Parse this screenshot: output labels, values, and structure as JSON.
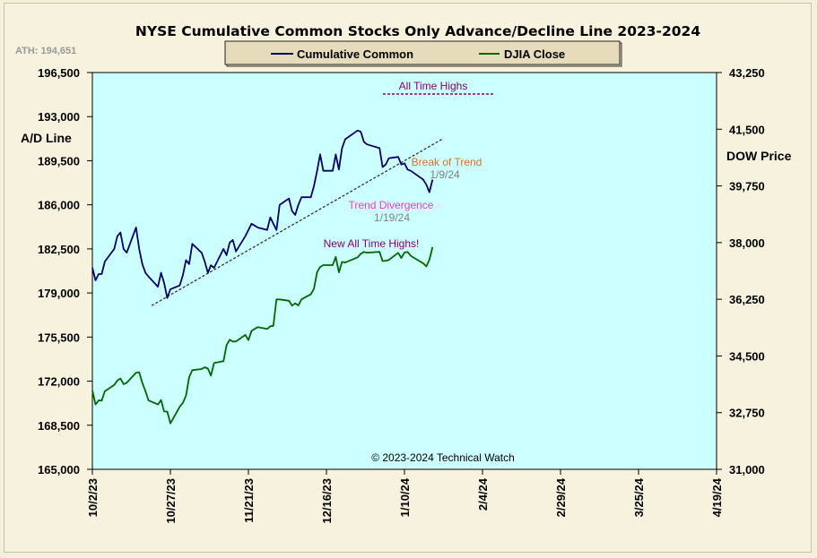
{
  "chart_data": {
    "type": "line",
    "title": "NYSE Cumulative  Common Stocks Only Advance/Decline Line 2023-2024",
    "ath_label": "ATH: 194,651",
    "ylabel_left": "A/D Line",
    "ylabel_right": "DOW Price",
    "copyright": "© 2023-2024  Technical Watch",
    "colors": {
      "plot_background": "#ccffff",
      "cumulative_common": "#000066",
      "djia_close": "#006600",
      "trendline": "#333333",
      "all_time_highs_text": "#800080",
      "break_of_trend_text": "#e07020",
      "date_text": "#808080",
      "trend_divergence_text": "#ff33cc"
    },
    "x_ticks": [
      "10/2/23",
      "10/27/23",
      "11/21/23",
      "12/16/23",
      "1/10/24",
      "2/4/24",
      "2/29/24",
      "3/25/24",
      "4/19/24"
    ],
    "xlim": [
      "2023-10-02",
      "2024-04-19"
    ],
    "left_axis": {
      "ylim": [
        165000,
        196500
      ],
      "ticks": [
        "165,000",
        "168,500",
        "172,000",
        "175,500",
        "179,000",
        "182,500",
        "186,000",
        "189,500",
        "193,000",
        "196,500"
      ]
    },
    "right_axis": {
      "ylim": [
        31000,
        43250
      ],
      "ticks": [
        "31,000",
        "32,750",
        "34,500",
        "36,250",
        "38,000",
        "39,750",
        "41,500",
        "43,250"
      ]
    },
    "series": [
      {
        "name": "Cumulative Common",
        "axis": "left",
        "x": [
          "2023-10-02",
          "2023-10-03",
          "2023-10-04",
          "2023-10-05",
          "2023-10-06",
          "2023-10-09",
          "2023-10-10",
          "2023-10-11",
          "2023-10-12",
          "2023-10-13",
          "2023-10-16",
          "2023-10-17",
          "2023-10-18",
          "2023-10-19",
          "2023-10-20",
          "2023-10-23",
          "2023-10-24",
          "2023-10-25",
          "2023-10-26",
          "2023-10-27",
          "2023-10-30",
          "2023-10-31",
          "2023-11-01",
          "2023-11-02",
          "2023-11-03",
          "2023-11-06",
          "2023-11-07",
          "2023-11-08",
          "2023-11-09",
          "2023-11-10",
          "2023-11-13",
          "2023-11-14",
          "2023-11-15",
          "2023-11-16",
          "2023-11-17",
          "2023-11-20",
          "2023-11-21",
          "2023-11-22",
          "2023-11-24",
          "2023-11-27",
          "2023-11-28",
          "2023-11-29",
          "2023-11-30",
          "2023-12-01",
          "2023-12-04",
          "2023-12-05",
          "2023-12-06",
          "2023-12-07",
          "2023-12-08",
          "2023-12-11",
          "2023-12-12",
          "2023-12-13",
          "2023-12-14",
          "2023-12-15",
          "2023-12-18",
          "2023-12-19",
          "2023-12-20",
          "2023-12-21",
          "2023-12-22",
          "2023-12-26",
          "2023-12-27",
          "2023-12-28",
          "2023-12-29",
          "2024-01-02",
          "2024-01-03",
          "2024-01-04",
          "2024-01-05",
          "2024-01-08",
          "2024-01-09",
          "2024-01-10",
          "2024-01-11",
          "2024-01-12",
          "2024-01-16",
          "2024-01-17",
          "2024-01-18",
          "2024-01-19"
        ],
        "values": [
          181000,
          180000,
          180500,
          180500,
          181500,
          182500,
          183500,
          183800,
          182500,
          182200,
          184200,
          182500,
          181300,
          180600,
          180300,
          179500,
          180600,
          179800,
          178600,
          179300,
          179600,
          180400,
          181600,
          181300,
          182900,
          182200,
          181500,
          180600,
          181200,
          181000,
          182500,
          182000,
          183000,
          183200,
          182300,
          183500,
          184000,
          184500,
          184200,
          184000,
          185000,
          184500,
          184000,
          186000,
          186500,
          185500,
          185200,
          186000,
          186600,
          186600,
          187500,
          188700,
          190000,
          188700,
          188700,
          190000,
          188800,
          190500,
          191200,
          191900,
          191800,
          191000,
          190800,
          190500,
          189000,
          189200,
          189700,
          189800,
          189200,
          189300,
          188800,
          188700,
          188000,
          187600,
          187000,
          188000
        ]
      },
      {
        "name": "DJIA Close",
        "axis": "right",
        "x": [
          "2023-10-02",
          "2023-10-03",
          "2023-10-04",
          "2023-10-05",
          "2023-10-06",
          "2023-10-09",
          "2023-10-10",
          "2023-10-11",
          "2023-10-12",
          "2023-10-13",
          "2023-10-16",
          "2023-10-17",
          "2023-10-18",
          "2023-10-19",
          "2023-10-20",
          "2023-10-23",
          "2023-10-24",
          "2023-10-25",
          "2023-10-26",
          "2023-10-27",
          "2023-10-30",
          "2023-10-31",
          "2023-11-01",
          "2023-11-02",
          "2023-11-03",
          "2023-11-06",
          "2023-11-07",
          "2023-11-08",
          "2023-11-09",
          "2023-11-10",
          "2023-11-13",
          "2023-11-14",
          "2023-11-15",
          "2023-11-16",
          "2023-11-17",
          "2023-11-20",
          "2023-11-21",
          "2023-11-22",
          "2023-11-24",
          "2023-11-27",
          "2023-11-28",
          "2023-11-29",
          "2023-11-30",
          "2023-12-01",
          "2023-12-04",
          "2023-12-05",
          "2023-12-06",
          "2023-12-07",
          "2023-12-08",
          "2023-12-11",
          "2023-12-12",
          "2023-12-13",
          "2023-12-14",
          "2023-12-15",
          "2023-12-18",
          "2023-12-19",
          "2023-12-20",
          "2023-12-21",
          "2023-12-22",
          "2023-12-26",
          "2023-12-27",
          "2023-12-28",
          "2023-12-29",
          "2024-01-02",
          "2024-01-03",
          "2024-01-04",
          "2024-01-05",
          "2024-01-08",
          "2024-01-09",
          "2024-01-10",
          "2024-01-11",
          "2024-01-12",
          "2024-01-16",
          "2024-01-17",
          "2024-01-18",
          "2024-01-19"
        ],
        "values": [
          33433,
          33002,
          33129,
          33120,
          33408,
          33605,
          33740,
          33805,
          33631,
          33670,
          33985,
          33998,
          33665,
          33415,
          33127,
          33002,
          33141,
          32785,
          32784,
          32418,
          32929,
          33053,
          33275,
          33839,
          34061,
          34096,
          34153,
          34112,
          33892,
          34283,
          34337,
          34828,
          35001,
          34946,
          34947,
          35151,
          34991,
          35274,
          35391,
          35334,
          35417,
          35430,
          36246,
          36246,
          36204,
          36054,
          36125,
          36060,
          36248,
          36404,
          36578,
          37090,
          37248,
          37306,
          37306,
          37558,
          37082,
          37404,
          37386,
          37546,
          37656,
          37711,
          37690,
          37715,
          37430,
          37440,
          37466,
          37683,
          37525,
          37696,
          37711,
          37593,
          37361,
          37266,
          37469,
          37863
        ]
      }
    ],
    "trendline": {
      "start": {
        "x": "2023-10-21",
        "left_value": 178000
      },
      "end": {
        "x": "2024-01-22",
        "left_value": 191200
      }
    },
    "annotations": {
      "all_time_highs": "All Time Highs",
      "break_of_trend": "Break of Trend",
      "break_of_trend_date": "1/9/24",
      "trend_divergence": "Trend  Divergence",
      "trend_divergence_date": "1/19/24",
      "new_all_time_highs": "New All Time Highs!"
    }
  }
}
